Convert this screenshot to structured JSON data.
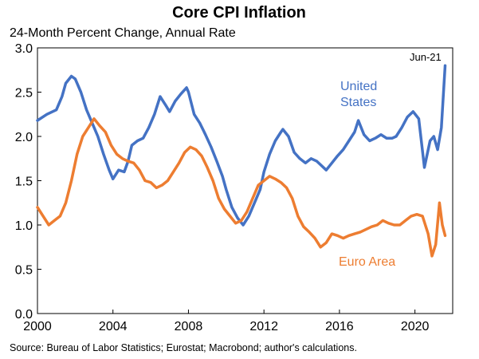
{
  "chart_data": {
    "type": "line",
    "title": "Core CPI Inflation",
    "subtitle": "24-Month Percent Change, Annual Rate",
    "source": "Source: Bureau of Labor Statistics; Eurostat; Macrobond; author's calculations.",
    "annotation": "Jun-21",
    "xlim": [
      2000,
      2022
    ],
    "ylim": [
      0,
      3
    ],
    "x_ticks": [
      2000,
      2004,
      2008,
      2012,
      2016,
      2020
    ],
    "y_ticks": [
      "0.0",
      "0.5",
      "1.0",
      "1.5",
      "2.0",
      "2.5",
      "3.0"
    ],
    "grid": false,
    "series": [
      {
        "name": "United\nStates",
        "color": "#4472C4",
        "points": [
          [
            2000.0,
            2.18
          ],
          [
            2000.5,
            2.25
          ],
          [
            2001.0,
            2.3
          ],
          [
            2001.3,
            2.45
          ],
          [
            2001.5,
            2.6
          ],
          [
            2001.8,
            2.68
          ],
          [
            2002.0,
            2.65
          ],
          [
            2002.3,
            2.5
          ],
          [
            2002.6,
            2.3
          ],
          [
            2002.9,
            2.15
          ],
          [
            2003.2,
            2.0
          ],
          [
            2003.5,
            1.8
          ],
          [
            2003.8,
            1.62
          ],
          [
            2004.0,
            1.52
          ],
          [
            2004.3,
            1.62
          ],
          [
            2004.6,
            1.6
          ],
          [
            2004.8,
            1.72
          ],
          [
            2005.0,
            1.9
          ],
          [
            2005.3,
            1.95
          ],
          [
            2005.6,
            1.98
          ],
          [
            2005.9,
            2.1
          ],
          [
            2006.2,
            2.25
          ],
          [
            2006.5,
            2.45
          ],
          [
            2006.8,
            2.35
          ],
          [
            2007.0,
            2.28
          ],
          [
            2007.3,
            2.4
          ],
          [
            2007.6,
            2.48
          ],
          [
            2007.9,
            2.55
          ],
          [
            2008.0,
            2.5
          ],
          [
            2008.3,
            2.25
          ],
          [
            2008.6,
            2.15
          ],
          [
            2008.9,
            2.02
          ],
          [
            2009.2,
            1.88
          ],
          [
            2009.5,
            1.72
          ],
          [
            2009.8,
            1.55
          ],
          [
            2010.0,
            1.4
          ],
          [
            2010.3,
            1.2
          ],
          [
            2010.6,
            1.08
          ],
          [
            2010.9,
            1.0
          ],
          [
            2011.2,
            1.1
          ],
          [
            2011.5,
            1.25
          ],
          [
            2011.8,
            1.4
          ],
          [
            2012.0,
            1.6
          ],
          [
            2012.3,
            1.8
          ],
          [
            2012.6,
            1.95
          ],
          [
            2012.9,
            2.05
          ],
          [
            2013.0,
            2.08
          ],
          [
            2013.3,
            2.0
          ],
          [
            2013.6,
            1.82
          ],
          [
            2013.9,
            1.75
          ],
          [
            2014.2,
            1.7
          ],
          [
            2014.5,
            1.75
          ],
          [
            2014.8,
            1.72
          ],
          [
            2015.0,
            1.68
          ],
          [
            2015.3,
            1.62
          ],
          [
            2015.6,
            1.7
          ],
          [
            2015.9,
            1.78
          ],
          [
            2016.2,
            1.85
          ],
          [
            2016.5,
            1.95
          ],
          [
            2016.8,
            2.05
          ],
          [
            2017.0,
            2.18
          ],
          [
            2017.3,
            2.02
          ],
          [
            2017.6,
            1.95
          ],
          [
            2017.9,
            1.98
          ],
          [
            2018.2,
            2.02
          ],
          [
            2018.5,
            1.98
          ],
          [
            2018.8,
            1.98
          ],
          [
            2019.0,
            2.0
          ],
          [
            2019.3,
            2.1
          ],
          [
            2019.6,
            2.22
          ],
          [
            2019.9,
            2.28
          ],
          [
            2020.2,
            2.2
          ],
          [
            2020.5,
            1.65
          ],
          [
            2020.8,
            1.95
          ],
          [
            2021.0,
            2.0
          ],
          [
            2021.2,
            1.85
          ],
          [
            2021.4,
            2.1
          ],
          [
            2021.6,
            2.8
          ]
        ]
      },
      {
        "name": "Euro Area",
        "color": "#ED7D31",
        "points": [
          [
            2000.0,
            1.2
          ],
          [
            2000.3,
            1.1
          ],
          [
            2000.6,
            1.0
          ],
          [
            2000.9,
            1.05
          ],
          [
            2001.2,
            1.1
          ],
          [
            2001.5,
            1.25
          ],
          [
            2001.8,
            1.5
          ],
          [
            2002.1,
            1.8
          ],
          [
            2002.4,
            2.0
          ],
          [
            2002.7,
            2.1
          ],
          [
            2003.0,
            2.2
          ],
          [
            2003.3,
            2.12
          ],
          [
            2003.6,
            2.05
          ],
          [
            2003.9,
            1.9
          ],
          [
            2004.2,
            1.8
          ],
          [
            2004.5,
            1.75
          ],
          [
            2004.8,
            1.72
          ],
          [
            2005.1,
            1.7
          ],
          [
            2005.4,
            1.62
          ],
          [
            2005.7,
            1.5
          ],
          [
            2006.0,
            1.48
          ],
          [
            2006.3,
            1.42
          ],
          [
            2006.6,
            1.45
          ],
          [
            2006.9,
            1.5
          ],
          [
            2007.2,
            1.6
          ],
          [
            2007.5,
            1.7
          ],
          [
            2007.8,
            1.82
          ],
          [
            2008.1,
            1.88
          ],
          [
            2008.4,
            1.85
          ],
          [
            2008.7,
            1.78
          ],
          [
            2009.0,
            1.65
          ],
          [
            2009.3,
            1.5
          ],
          [
            2009.6,
            1.3
          ],
          [
            2009.9,
            1.18
          ],
          [
            2010.2,
            1.1
          ],
          [
            2010.5,
            1.02
          ],
          [
            2010.8,
            1.05
          ],
          [
            2011.1,
            1.15
          ],
          [
            2011.4,
            1.3
          ],
          [
            2011.7,
            1.45
          ],
          [
            2012.0,
            1.5
          ],
          [
            2012.3,
            1.55
          ],
          [
            2012.6,
            1.52
          ],
          [
            2012.9,
            1.48
          ],
          [
            2013.2,
            1.42
          ],
          [
            2013.5,
            1.3
          ],
          [
            2013.8,
            1.1
          ],
          [
            2014.1,
            0.98
          ],
          [
            2014.4,
            0.92
          ],
          [
            2014.7,
            0.85
          ],
          [
            2015.0,
            0.75
          ],
          [
            2015.3,
            0.8
          ],
          [
            2015.6,
            0.9
          ],
          [
            2015.9,
            0.88
          ],
          [
            2016.2,
            0.85
          ],
          [
            2016.5,
            0.88
          ],
          [
            2016.8,
            0.9
          ],
          [
            2017.1,
            0.92
          ],
          [
            2017.4,
            0.95
          ],
          [
            2017.7,
            0.98
          ],
          [
            2018.0,
            1.0
          ],
          [
            2018.3,
            1.05
          ],
          [
            2018.6,
            1.02
          ],
          [
            2018.9,
            1.0
          ],
          [
            2019.2,
            1.0
          ],
          [
            2019.5,
            1.05
          ],
          [
            2019.8,
            1.1
          ],
          [
            2020.1,
            1.12
          ],
          [
            2020.4,
            1.1
          ],
          [
            2020.7,
            0.9
          ],
          [
            2020.9,
            0.65
          ],
          [
            2021.1,
            0.78
          ],
          [
            2021.3,
            1.25
          ],
          [
            2021.45,
            1.0
          ],
          [
            2021.6,
            0.88
          ]
        ]
      }
    ]
  }
}
